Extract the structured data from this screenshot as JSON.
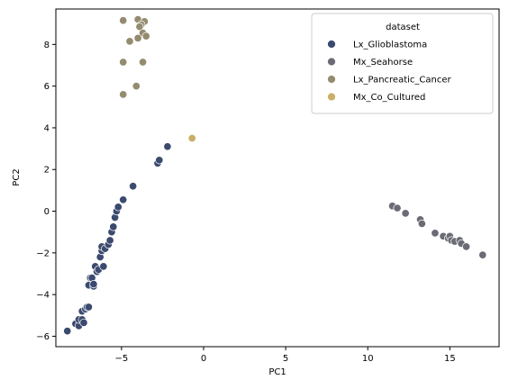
{
  "chart_data": {
    "type": "scatter",
    "xlabel": "PC1",
    "ylabel": "PC2",
    "xlim": [
      -9.0,
      18.0
    ],
    "ylim": [
      -6.5,
      9.7
    ],
    "xticks": [
      -5,
      0,
      5,
      10,
      15
    ],
    "yticks": [
      -6,
      -4,
      -2,
      0,
      2,
      4,
      6,
      8
    ],
    "grid": false,
    "legend": {
      "title": "dataset",
      "placement": "top-right"
    },
    "series": [
      {
        "name": "Lx_Glioblastoma",
        "color": "#3b4a6e",
        "points": [
          [
            -8.3,
            -5.75
          ],
          [
            -7.8,
            -5.4
          ],
          [
            -7.6,
            -5.5
          ],
          [
            -7.6,
            -5.2
          ],
          [
            -7.4,
            -5.2
          ],
          [
            -7.3,
            -5.35
          ],
          [
            -7.4,
            -4.8
          ],
          [
            -7.2,
            -4.7
          ],
          [
            -7.1,
            -4.6
          ],
          [
            -7.0,
            -4.6
          ],
          [
            -7.0,
            -3.55
          ],
          [
            -6.9,
            -3.2
          ],
          [
            -6.8,
            -3.2
          ],
          [
            -6.7,
            -3.6
          ],
          [
            -6.7,
            -3.5
          ],
          [
            -6.6,
            -2.65
          ],
          [
            -6.5,
            -2.9
          ],
          [
            -6.4,
            -2.8
          ],
          [
            -6.3,
            -2.2
          ],
          [
            -6.2,
            -1.9
          ],
          [
            -6.2,
            -1.7
          ],
          [
            -6.1,
            -2.65
          ],
          [
            -6.0,
            -1.8
          ],
          [
            -5.8,
            -1.6
          ],
          [
            -5.7,
            -1.4
          ],
          [
            -5.6,
            -1.0
          ],
          [
            -5.5,
            -0.75
          ],
          [
            -5.4,
            -0.3
          ],
          [
            -5.3,
            0.0
          ],
          [
            -5.2,
            0.2
          ],
          [
            -4.9,
            0.55
          ],
          [
            -4.3,
            1.2
          ],
          [
            -2.8,
            2.3
          ],
          [
            -2.7,
            2.45
          ],
          [
            -2.2,
            3.1
          ]
        ]
      },
      {
        "name": "Mx_Seahorse",
        "color": "#6b6b76",
        "points": [
          [
            11.5,
            0.25
          ],
          [
            11.8,
            0.15
          ],
          [
            12.3,
            -0.1
          ],
          [
            13.2,
            -0.4
          ],
          [
            13.3,
            -0.6
          ],
          [
            14.1,
            -1.05
          ],
          [
            14.6,
            -1.2
          ],
          [
            14.9,
            -1.3
          ],
          [
            15.0,
            -1.2
          ],
          [
            15.1,
            -1.4
          ],
          [
            15.3,
            -1.45
          ],
          [
            15.6,
            -1.4
          ],
          [
            15.7,
            -1.55
          ],
          [
            16.0,
            -1.7
          ],
          [
            17.0,
            -2.1
          ]
        ]
      },
      {
        "name": "Lx_Pancreatic_Cancer",
        "color": "#958b6f",
        "points": [
          [
            -4.9,
            9.15
          ],
          [
            -4.0,
            9.2
          ],
          [
            -3.6,
            9.1
          ],
          [
            -3.8,
            8.95
          ],
          [
            -3.9,
            8.85
          ],
          [
            -3.7,
            8.55
          ],
          [
            -3.5,
            8.4
          ],
          [
            -4.0,
            8.3
          ],
          [
            -4.5,
            8.15
          ],
          [
            -4.9,
            7.15
          ],
          [
            -3.7,
            7.15
          ],
          [
            -4.1,
            6.0
          ],
          [
            -4.9,
            5.6
          ]
        ]
      },
      {
        "name": "Mx_Co_Cultured",
        "color": "#c9b066",
        "points": [
          [
            -0.7,
            3.5
          ]
        ]
      }
    ]
  }
}
